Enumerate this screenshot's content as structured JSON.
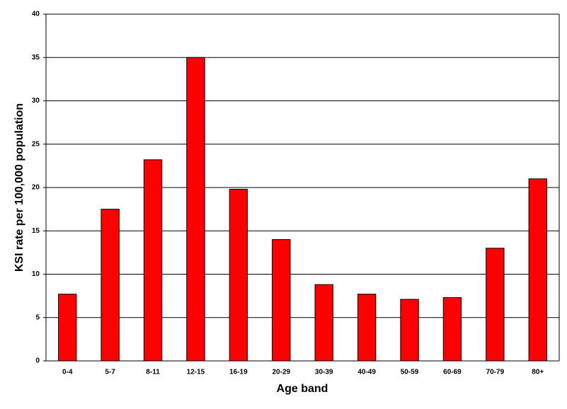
{
  "chart_data": {
    "type": "bar",
    "x_label": "Age band",
    "y_label": "KSI rate per 100,000 population",
    "categories": [
      "0-4",
      "5-7",
      "8-11",
      "12-15",
      "16-19",
      "20-29",
      "30-39",
      "40-49",
      "50-59",
      "60-69",
      "70-79",
      "80+"
    ],
    "values": [
      7.7,
      17.5,
      23.2,
      35,
      19.8,
      14,
      8.8,
      7.7,
      7.1,
      7.3,
      13,
      21
    ],
    "color": "#ff0000",
    "ylim": [
      0,
      40
    ],
    "yticks": [
      0,
      5,
      10,
      15,
      20,
      25,
      30,
      35,
      40
    ],
    "grid": true
  }
}
